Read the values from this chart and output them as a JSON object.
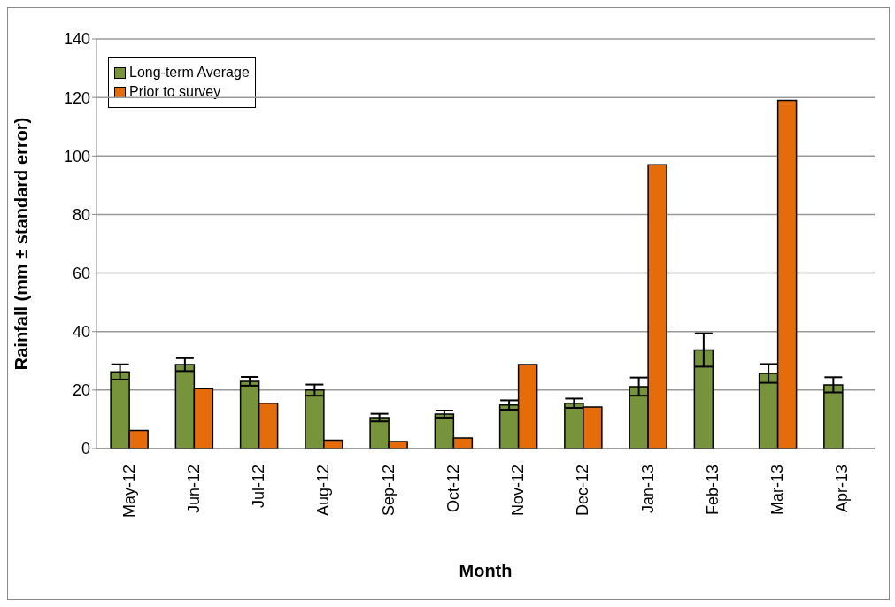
{
  "chart_data": {
    "type": "bar",
    "xlabel": "Month",
    "ylabel": "Rainfall (mm ± standard error)",
    "categories": [
      "May-12",
      "Jun-12",
      "Jul-12",
      "Aug-12",
      "Sep-12",
      "Oct-12",
      "Nov-12",
      "Dec-12",
      "Jan-13",
      "Feb-13",
      "Mar-13",
      "Apr-13"
    ],
    "series": [
      {
        "name": "Long-term Average",
        "color": "#77933c",
        "values": [
          26.2,
          28.7,
          23.0,
          20.0,
          10.6,
          11.8,
          14.9,
          15.5,
          21.2,
          33.7,
          25.7,
          21.8
        ],
        "errors": [
          2.6,
          2.2,
          1.5,
          1.9,
          1.3,
          1.2,
          1.6,
          1.6,
          3.1,
          5.7,
          3.2,
          2.6
        ]
      },
      {
        "name": "Prior to survey",
        "color": "#e46c0a",
        "values": [
          6.2,
          20.5,
          15.5,
          2.9,
          2.4,
          3.6,
          28.7,
          14.2,
          97,
          null,
          119,
          null
        ]
      }
    ],
    "ylim": [
      0,
      140
    ],
    "yticks": [
      0,
      20,
      40,
      60,
      80,
      100,
      120,
      140
    ],
    "grid": "y",
    "legend": "top left"
  }
}
